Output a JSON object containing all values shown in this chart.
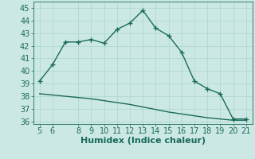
{
  "xlabel": "Humidex (Indice chaleur)",
  "x": [
    5,
    6,
    7,
    8,
    9,
    10,
    11,
    12,
    13,
    14,
    15,
    16,
    17,
    18,
    19,
    20,
    21
  ],
  "y_main": [
    39.2,
    40.5,
    42.3,
    42.3,
    42.5,
    42.2,
    43.3,
    43.8,
    44.8,
    43.4,
    42.8,
    41.5,
    39.2,
    38.6,
    38.2,
    36.2,
    36.2
  ],
  "y_ref": [
    38.2,
    38.1,
    38.0,
    37.9,
    37.8,
    37.65,
    37.5,
    37.35,
    37.15,
    36.95,
    36.75,
    36.6,
    36.45,
    36.3,
    36.2,
    36.1,
    36.1
  ],
  "ylim": [
    35.8,
    45.5
  ],
  "yticks": [
    36,
    37,
    38,
    39,
    40,
    41,
    42,
    43,
    44,
    45
  ],
  "xticks": [
    5,
    6,
    8,
    9,
    10,
    11,
    12,
    13,
    14,
    15,
    16,
    17,
    18,
    19,
    20,
    21
  ],
  "line_color": "#1a6b5a",
  "bg_color": "#cce8e4",
  "grid_color": "#b0d8d2",
  "axes_color": "#1a6b5a",
  "tick_color": "#1a6b5a",
  "label_color": "#1a6b5a",
  "font_size": 7,
  "marker": "+",
  "marker_size": 4,
  "line_width": 1.0
}
